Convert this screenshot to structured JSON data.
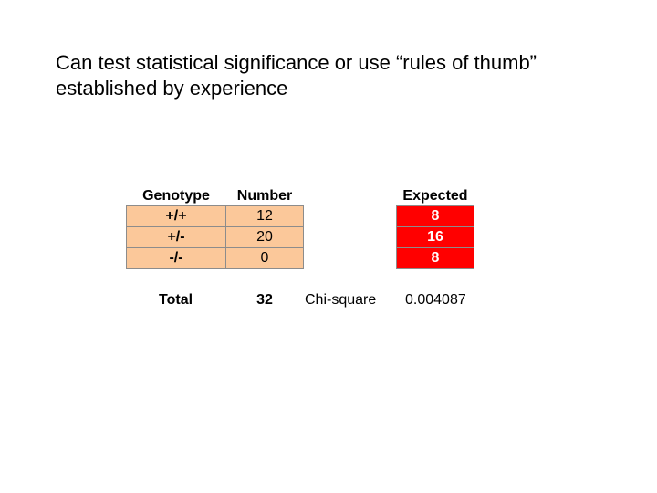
{
  "slide": {
    "line1": "Can test statistical significance or use “rules of thumb”",
    "line2": "established by experience"
  },
  "table": {
    "headers": {
      "genotype": "Genotype",
      "number": "Number",
      "expected": "Expected"
    },
    "rows": [
      {
        "genotype": "+/+",
        "number": "12",
        "expected": "8"
      },
      {
        "genotype": "+/-",
        "number": "20",
        "expected": "16"
      },
      {
        "genotype": "-/-",
        "number": "0",
        "expected": "8"
      }
    ],
    "total_label": "Total",
    "total_value": "32",
    "chi_label": "Chi-square",
    "chi_value": "0.004087"
  },
  "colors": {
    "genotype_fill": "#fbc89a",
    "expected_fill": "#ff0000",
    "expected_text": "#ffffff"
  }
}
